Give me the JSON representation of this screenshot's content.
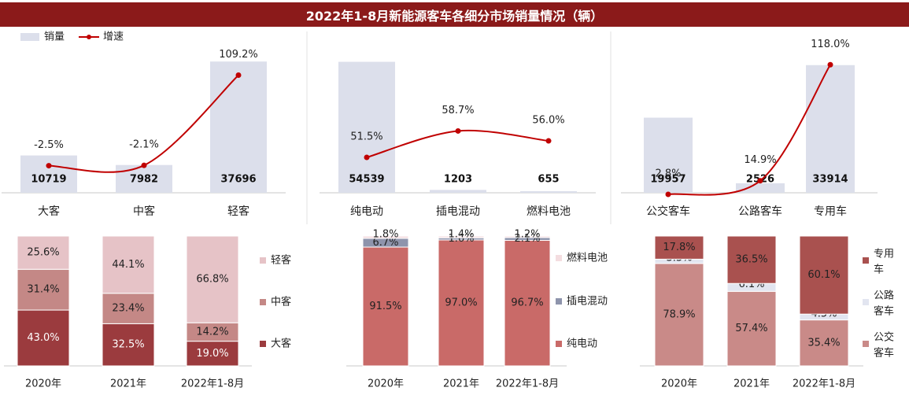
{
  "title": "2022年1-8月新能源客车各细分市场销量情况（辆）",
  "colors": {
    "title_bg": "#8b1a1a",
    "volume_bar": "#dcdfeb",
    "growth_line": "#c00000",
    "big_bus": "#9b3b3e",
    "mid_bus": "#c48886",
    "light_bus": "#e6c3c7",
    "bev": "#c96a68",
    "phev": "#8e94ac",
    "fcev": "#f4dde0",
    "city_bus": "#c98a88",
    "highway_bus": "#e2e5f0",
    "special_bus": "#a9514f"
  },
  "top_legend": {
    "volume": "销量",
    "growth": "增速"
  },
  "chart_data": [
    {
      "type": "bar+line",
      "group": "车长",
      "categories": [
        "大客",
        "中客",
        "轻客"
      ],
      "series": [
        {
          "name": "销量",
          "values": [
            10719,
            7982,
            37696
          ],
          "labels": [
            "10719",
            "7982",
            "37696"
          ]
        },
        {
          "name": "增速",
          "values": [
            -2.5,
            -2.1,
            109.2
          ],
          "labels": [
            "-2.5%",
            "-2.1%",
            "109.2%"
          ]
        }
      ]
    },
    {
      "type": "bar+line",
      "group": "动力类型",
      "categories": [
        "纯电动",
        "插电混动",
        "燃料电池"
      ],
      "series": [
        {
          "name": "销量",
          "values": [
            54539,
            1203,
            655
          ],
          "labels": [
            "54539",
            "1203",
            "655"
          ]
        },
        {
          "name": "增速",
          "values": [
            51.5,
            58.7,
            56.0
          ],
          "labels": [
            "51.5%",
            "58.7%",
            "56.0%"
          ]
        }
      ]
    },
    {
      "type": "bar+line",
      "group": "用途",
      "categories": [
        "公交客车",
        "公路客车",
        "专用车"
      ],
      "series": [
        {
          "name": "销量",
          "values": [
            19957,
            2526,
            33914
          ],
          "labels": [
            "19957",
            "2526",
            "33914"
          ]
        },
        {
          "name": "增速",
          "values": [
            2.8,
            14.9,
            118.0
          ],
          "labels": [
            "2.8%",
            "14.9%",
            "118.0%"
          ]
        }
      ]
    },
    {
      "type": "bar",
      "stacked": true,
      "percent": true,
      "categories": [
        "2020年",
        "2021年",
        "2022年1-8月"
      ],
      "series": [
        {
          "name": "大客",
          "values": [
            43.0,
            32.5,
            19.0
          ],
          "labels": [
            "43.0%",
            "32.5%",
            "19.0%"
          ]
        },
        {
          "name": "中客",
          "values": [
            31.4,
            23.4,
            14.2
          ],
          "labels": [
            "31.4%",
            "23.4%",
            "14.2%"
          ]
        },
        {
          "name": "轻客",
          "values": [
            25.6,
            44.1,
            66.8
          ],
          "labels": [
            "25.6%",
            "44.1%",
            "66.8%"
          ]
        }
      ],
      "legend": [
        "轻客",
        "中客",
        "大客"
      ]
    },
    {
      "type": "bar",
      "stacked": true,
      "percent": true,
      "categories": [
        "2020年",
        "2021年",
        "2022年1-8月"
      ],
      "series": [
        {
          "name": "纯电动",
          "values": [
            91.5,
            97.0,
            96.7
          ],
          "labels": [
            "91.5%",
            "97.0%",
            "96.7%"
          ]
        },
        {
          "name": "插电混动",
          "values": [
            6.7,
            1.6,
            2.1
          ],
          "labels": [
            "6.7%",
            "1.6%",
            "2.1%"
          ]
        },
        {
          "name": "燃料电池",
          "values": [
            1.8,
            1.4,
            1.2
          ],
          "labels": [
            "1.8%",
            "1.4%",
            "1.2%"
          ]
        }
      ],
      "legend": [
        "燃料电池",
        "插电混动",
        "纯电动"
      ]
    },
    {
      "type": "bar",
      "stacked": true,
      "percent": true,
      "categories": [
        "2020年",
        "2021年",
        "2022年1-8月"
      ],
      "series": [
        {
          "name": "公交客车",
          "values": [
            78.9,
            57.4,
            35.4
          ],
          "labels": [
            "78.9%",
            "57.4%",
            "35.4%"
          ]
        },
        {
          "name": "公路客车",
          "values": [
            3.3,
            6.1,
            4.5
          ],
          "labels": [
            "3.3%",
            "6.1%",
            "4.5%"
          ]
        },
        {
          "name": "专用车",
          "values": [
            17.8,
            36.5,
            60.1
          ],
          "labels": [
            "17.8%",
            "36.5%",
            "60.1%"
          ]
        }
      ],
      "legend": [
        "专用车",
        "公路客车",
        "公交客车"
      ]
    }
  ]
}
